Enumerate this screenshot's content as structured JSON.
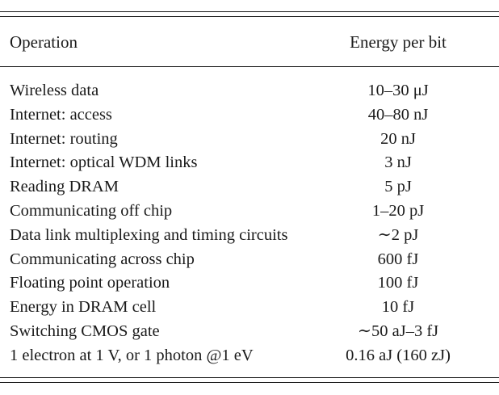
{
  "table": {
    "headers": {
      "operation": "Operation",
      "energy": "Energy per bit"
    },
    "rows": [
      {
        "operation": "Wireless data",
        "energy": "10–30 μJ"
      },
      {
        "operation": "Internet: access",
        "energy": "40–80 nJ"
      },
      {
        "operation": "Internet: routing",
        "energy": "20 nJ"
      },
      {
        "operation": "Internet: optical WDM links",
        "energy": "3 nJ"
      },
      {
        "operation": "Reading DRAM",
        "energy": "5 pJ"
      },
      {
        "operation": "Communicating off chip",
        "energy": "1–20 pJ"
      },
      {
        "operation": "Data link multiplexing and timing circuits",
        "energy": "∼2 pJ"
      },
      {
        "operation": "Communicating across chip",
        "energy": "600 fJ"
      },
      {
        "operation": "Floating point operation",
        "energy": "100 fJ"
      },
      {
        "operation": "Energy in DRAM cell",
        "energy": "10 fJ"
      },
      {
        "operation": "Switching CMOS gate",
        "energy": "∼50 aJ–3 fJ"
      },
      {
        "operation": "1 electron at 1 V, or 1 photon @1 eV",
        "energy": "0.16 aJ (160 zJ)"
      }
    ]
  }
}
